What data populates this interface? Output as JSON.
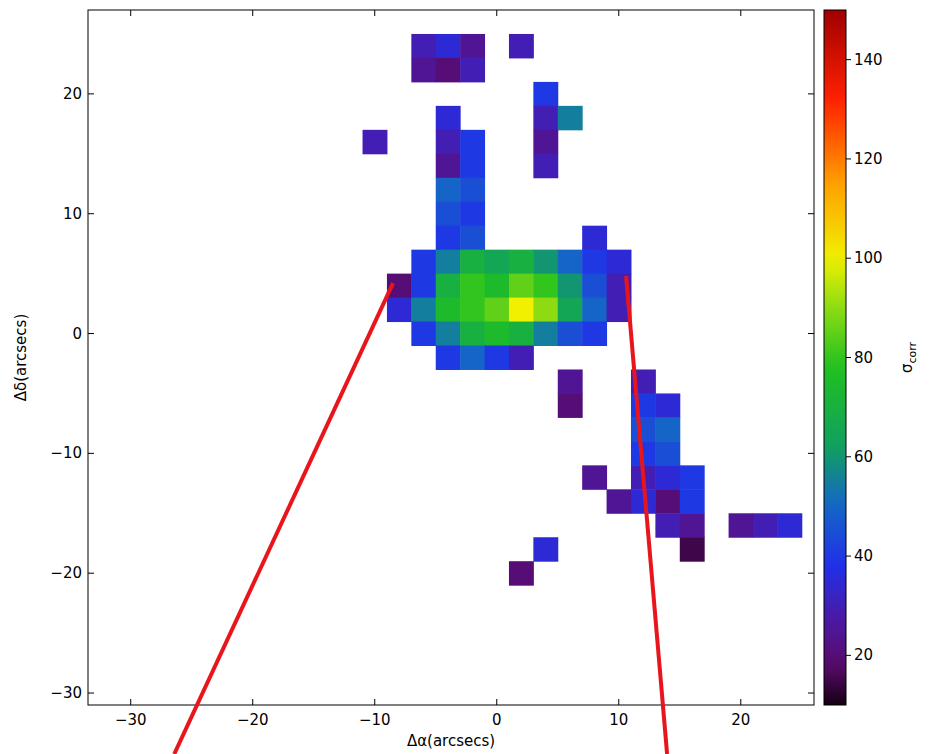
{
  "chart_data": {
    "type": "heatmap",
    "x_label": "Δα(arcsecs)",
    "y_label": "Δδ(arcsecs)",
    "x": [
      -12,
      -10,
      -8,
      -6,
      -4,
      -2,
      0,
      2,
      4,
      6,
      8,
      10,
      12,
      14,
      16,
      18,
      20,
      22,
      24
    ],
    "y": [
      26,
      24,
      22,
      20,
      18,
      16,
      14,
      12,
      10,
      8,
      6,
      4,
      2,
      0,
      -2,
      -4,
      -6,
      -8,
      -10,
      -12,
      -14,
      -16,
      -18,
      -20
    ],
    "z": [
      [
        null,
        null,
        null,
        null,
        null,
        null,
        null,
        null,
        null,
        null,
        null,
        null,
        null,
        null,
        null,
        null,
        null,
        null,
        null
      ],
      [
        null,
        null,
        null,
        30,
        35,
        25,
        null,
        30,
        null,
        null,
        null,
        null,
        null,
        null,
        null,
        null,
        null,
        null,
        null
      ],
      [
        null,
        null,
        null,
        25,
        20,
        30,
        null,
        null,
        null,
        null,
        null,
        null,
        null,
        null,
        null,
        null,
        null,
        null,
        null
      ],
      [
        null,
        null,
        null,
        null,
        null,
        null,
        null,
        null,
        40,
        null,
        null,
        null,
        null,
        null,
        null,
        null,
        null,
        null,
        null
      ],
      [
        null,
        null,
        null,
        null,
        35,
        null,
        null,
        null,
        30,
        55,
        null,
        null,
        null,
        null,
        null,
        null,
        null,
        null,
        null
      ],
      [
        null,
        30,
        null,
        null,
        30,
        40,
        null,
        null,
        25,
        null,
        null,
        null,
        null,
        null,
        null,
        null,
        null,
        null,
        null
      ],
      [
        null,
        null,
        null,
        null,
        25,
        40,
        null,
        null,
        30,
        null,
        null,
        null,
        null,
        null,
        null,
        null,
        null,
        null,
        null
      ],
      [
        null,
        null,
        null,
        null,
        50,
        45,
        null,
        null,
        null,
        null,
        null,
        null,
        null,
        null,
        null,
        null,
        null,
        null,
        null
      ],
      [
        null,
        null,
        null,
        null,
        45,
        40,
        null,
        null,
        null,
        null,
        null,
        null,
        null,
        null,
        null,
        null,
        null,
        null,
        null
      ],
      [
        null,
        null,
        null,
        null,
        40,
        45,
        null,
        null,
        null,
        null,
        35,
        null,
        null,
        null,
        null,
        null,
        null,
        null,
        null
      ],
      [
        null,
        null,
        null,
        40,
        55,
        70,
        65,
        70,
        60,
        50,
        40,
        35,
        null,
        null,
        null,
        null,
        null,
        null,
        null
      ],
      [
        null,
        null,
        20,
        40,
        70,
        80,
        75,
        85,
        80,
        60,
        45,
        30,
        null,
        null,
        null,
        null,
        null,
        null,
        null
      ],
      [
        null,
        null,
        35,
        55,
        75,
        80,
        85,
        100,
        90,
        65,
        50,
        30,
        null,
        null,
        null,
        null,
        null,
        null,
        null
      ],
      [
        null,
        null,
        null,
        40,
        55,
        70,
        75,
        70,
        55,
        45,
        40,
        null,
        null,
        null,
        null,
        null,
        null,
        null,
        null
      ],
      [
        null,
        null,
        null,
        null,
        40,
        50,
        40,
        30,
        null,
        null,
        null,
        null,
        null,
        null,
        null,
        null,
        null,
        null,
        null
      ],
      [
        null,
        null,
        null,
        null,
        null,
        null,
        null,
        null,
        null,
        25,
        null,
        null,
        30,
        null,
        null,
        null,
        null,
        null,
        null
      ],
      [
        null,
        null,
        null,
        null,
        null,
        null,
        null,
        null,
        null,
        20,
        null,
        null,
        40,
        35,
        null,
        null,
        null,
        null,
        null
      ],
      [
        null,
        null,
        null,
        null,
        null,
        null,
        null,
        null,
        null,
        null,
        null,
        null,
        45,
        50,
        null,
        null,
        null,
        null,
        null
      ],
      [
        null,
        null,
        null,
        null,
        null,
        null,
        null,
        null,
        null,
        null,
        null,
        null,
        40,
        45,
        null,
        null,
        null,
        null,
        null
      ],
      [
        null,
        null,
        null,
        null,
        null,
        null,
        null,
        null,
        null,
        null,
        25,
        null,
        30,
        35,
        40,
        null,
        null,
        null,
        null
      ],
      [
        null,
        null,
        null,
        null,
        null,
        null,
        null,
        null,
        null,
        null,
        null,
        25,
        35,
        20,
        40,
        null,
        null,
        null,
        null
      ],
      [
        null,
        null,
        null,
        null,
        null,
        null,
        null,
        null,
        null,
        null,
        null,
        null,
        null,
        30,
        25,
        null,
        25,
        30,
        35
      ],
      [
        null,
        null,
        null,
        null,
        null,
        null,
        null,
        null,
        35,
        null,
        null,
        null,
        null,
        null,
        15,
        null,
        null,
        null,
        null
      ],
      [
        null,
        null,
        null,
        null,
        null,
        null,
        null,
        20,
        null,
        null,
        null,
        null,
        null,
        null,
        null,
        null,
        null,
        null,
        null
      ]
    ],
    "xlim": [
      -33.5,
      26
    ],
    "ylim": [
      -31,
      27
    ],
    "xticks": [
      -30,
      -20,
      -10,
      0,
      10,
      20
    ],
    "yticks": [
      -30,
      -20,
      -10,
      0,
      10,
      20
    ],
    "colorbar": {
      "label": {
        "text": "σ",
        "subscript": "corr"
      },
      "range": [
        10,
        150
      ],
      "ticks": [
        20,
        40,
        60,
        80,
        100,
        120,
        140
      ]
    }
  }
}
